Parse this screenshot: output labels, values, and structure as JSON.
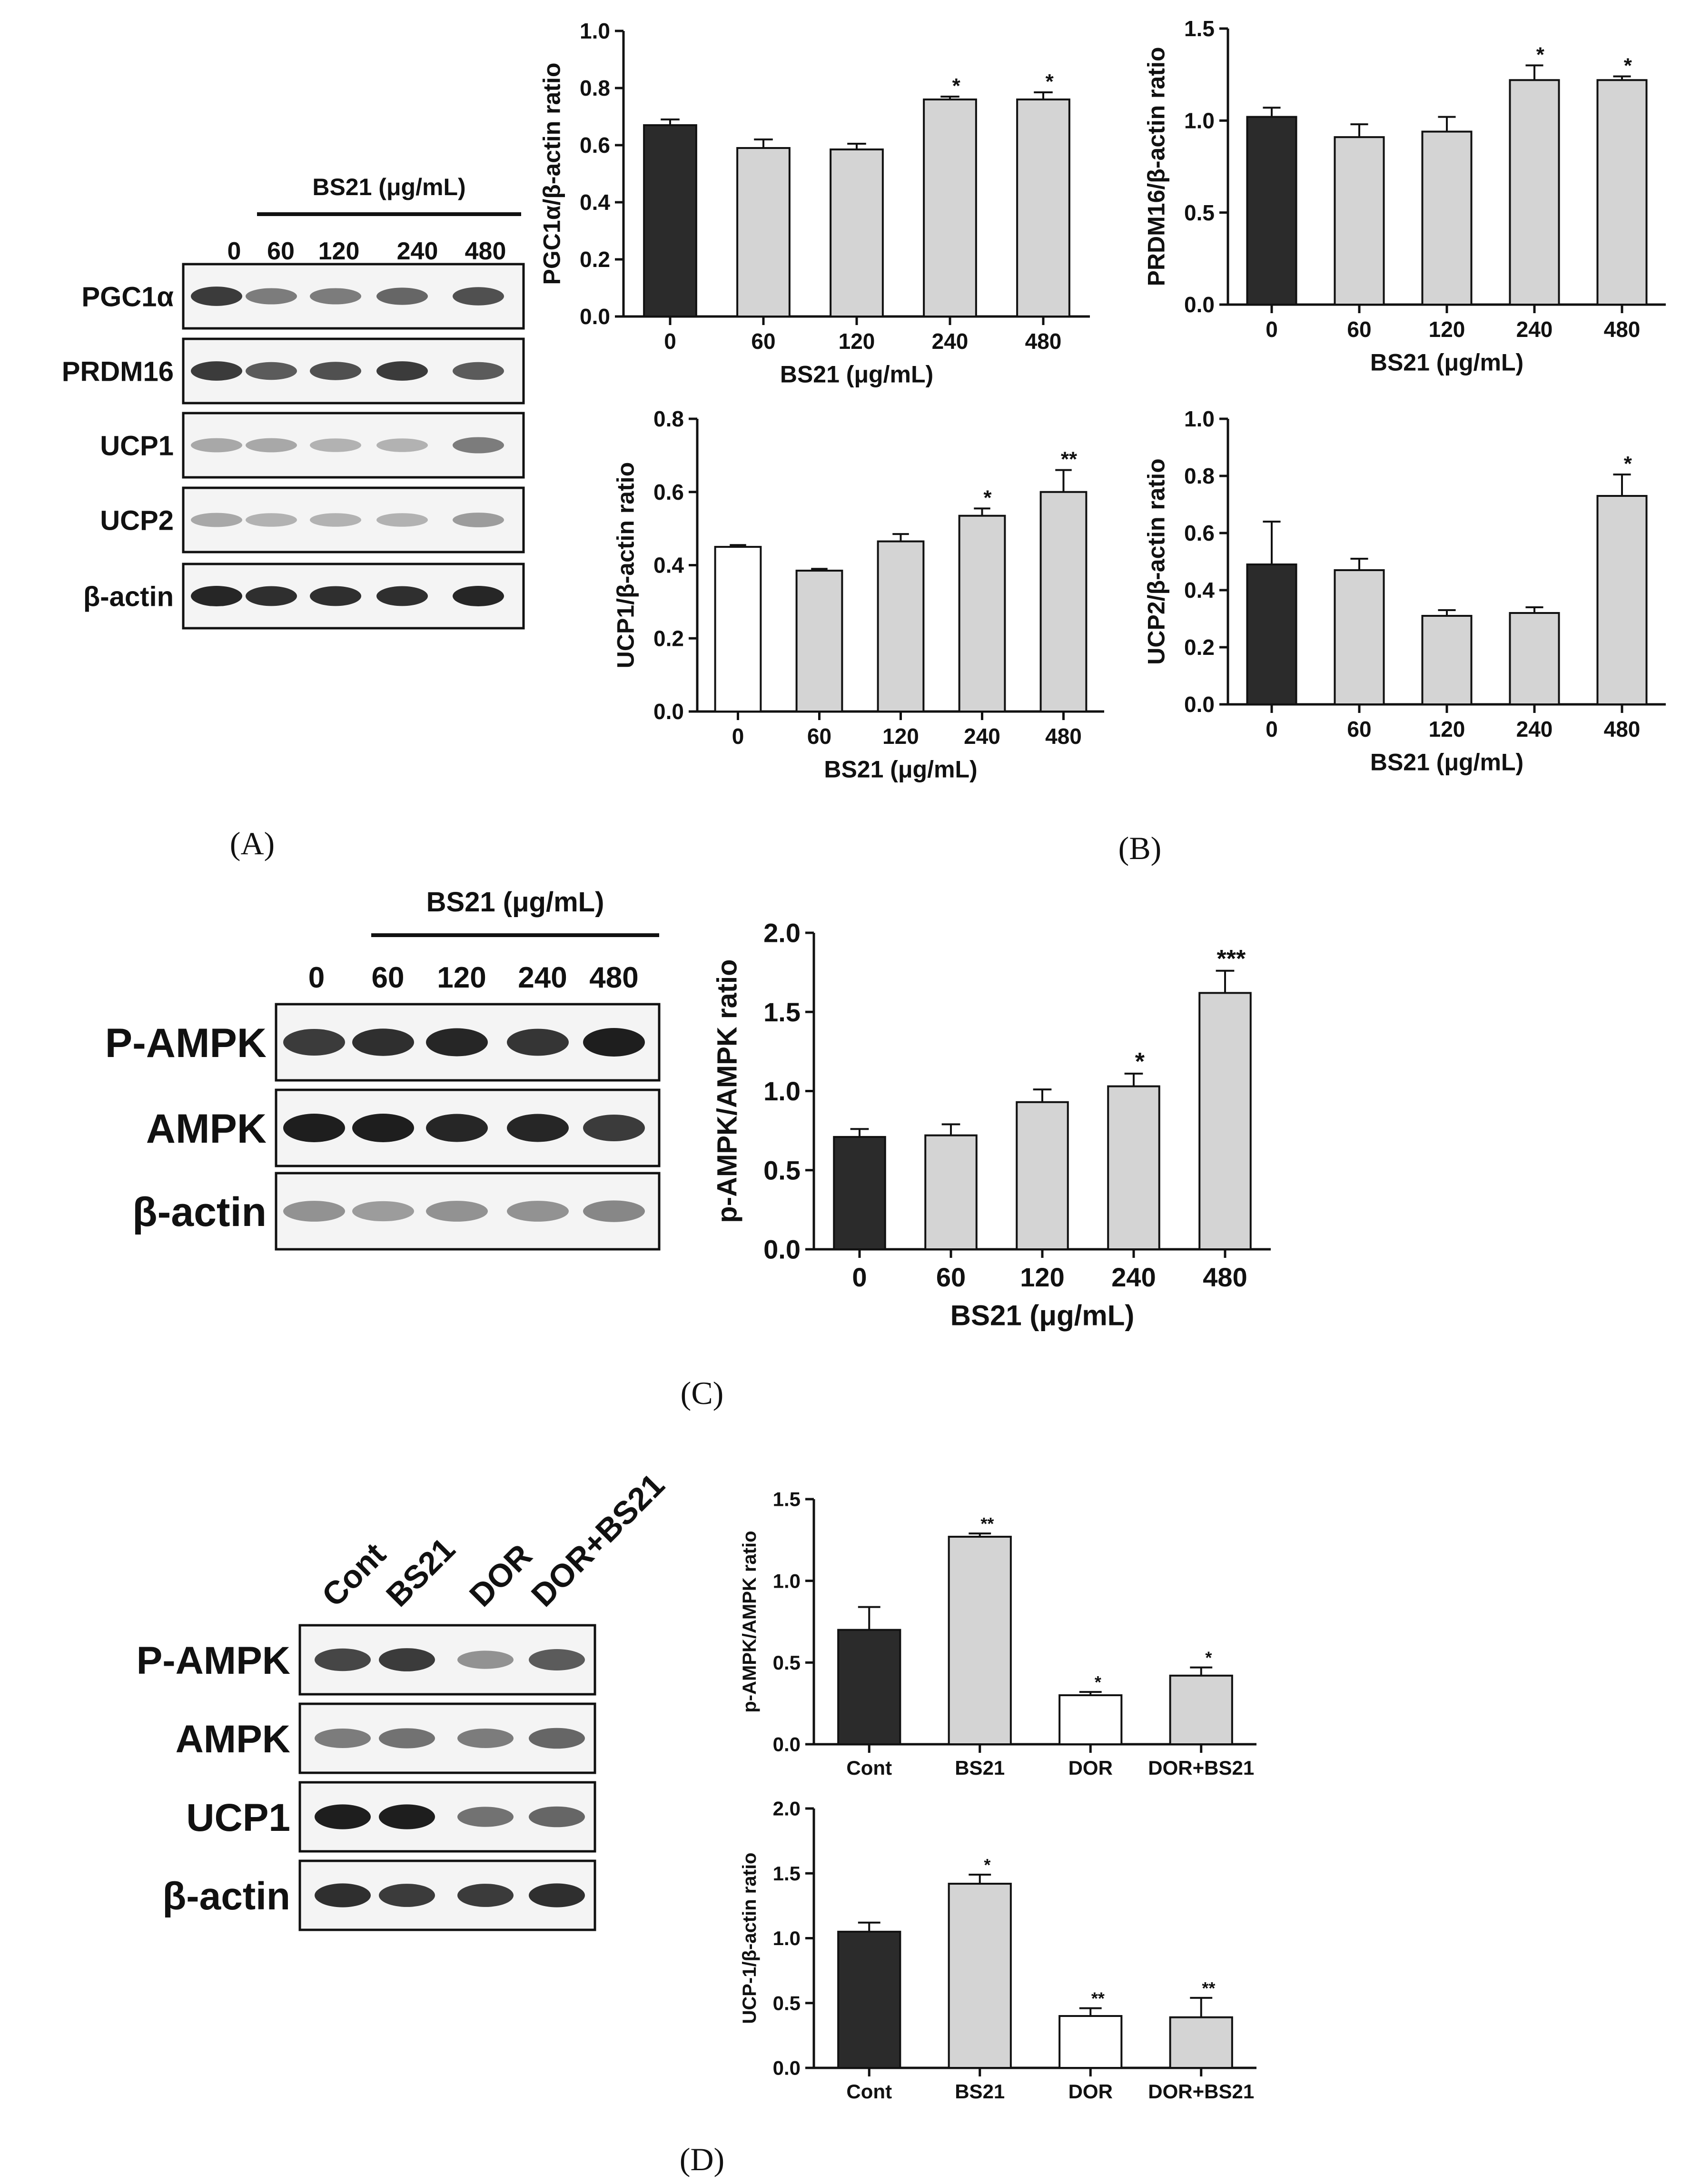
{
  "panel_labels": [
    "(A)",
    "(B)",
    "(C)",
    "(D)"
  ],
  "blots": {
    "a": {
      "group_label": "BS21 (μg/mL)",
      "lanes": [
        "0",
        "60",
        "120",
        "240",
        "480"
      ],
      "rows": [
        "PGC1α",
        "PRDM16",
        "UCP1",
        "UCP2",
        "β-actin"
      ]
    },
    "c": {
      "group_label": "BS21 (μg/mL)",
      "lanes": [
        "0",
        "60",
        "120",
        "240",
        "480"
      ],
      "rows": [
        "P-AMPK",
        "AMPK",
        "β-actin"
      ]
    },
    "d": {
      "lanes": [
        "Cont",
        "BS21",
        "DOR",
        "DOR+BS21"
      ],
      "rows": [
        "P-AMPK",
        "AMPK",
        "UCP1",
        "β-actin"
      ]
    }
  },
  "colors": {
    "dark_bar": "#2b2b2b",
    "gray_bar": "#d4d4d4",
    "white_bar": "#ffffff"
  },
  "chart_data": [
    {
      "id": "b1",
      "type": "bar",
      "categories": [
        "0",
        "60",
        "120",
        "240",
        "480"
      ],
      "values": [
        0.67,
        0.59,
        0.585,
        0.76,
        0.76
      ],
      "errors": [
        0.02,
        0.03,
        0.02,
        0.01,
        0.025
      ],
      "stars": [
        "",
        "",
        "",
        "*",
        "*"
      ],
      "bar_styles": [
        "dark",
        "gray",
        "gray",
        "gray",
        "gray"
      ],
      "ylim": [
        0,
        1.0
      ],
      "yticks": [
        "0.0",
        "0.2",
        "0.4",
        "0.6",
        "0.8",
        "1.0"
      ],
      "xlabel": "BS21 (μg/mL)",
      "ylabel": "PGC1α/β-actin ratio"
    },
    {
      "id": "b2",
      "type": "bar",
      "categories": [
        "0",
        "60",
        "120",
        "240",
        "480"
      ],
      "values": [
        1.02,
        0.91,
        0.94,
        1.22,
        1.22
      ],
      "errors": [
        0.05,
        0.07,
        0.08,
        0.08,
        0.02
      ],
      "stars": [
        "",
        "",
        "",
        "*",
        "*"
      ],
      "bar_styles": [
        "dark",
        "gray",
        "gray",
        "gray",
        "gray"
      ],
      "ylim": [
        0,
        1.5
      ],
      "yticks": [
        "0.0",
        "0.5",
        "1.0",
        "1.5"
      ],
      "xlabel": "BS21 (μg/mL)",
      "ylabel": "PRDM16/β-actin ratio"
    },
    {
      "id": "b3",
      "type": "bar",
      "categories": [
        "0",
        "60",
        "120",
        "240",
        "480"
      ],
      "values": [
        0.45,
        0.385,
        0.465,
        0.535,
        0.6
      ],
      "errors": [
        0.005,
        0.005,
        0.02,
        0.02,
        0.06
      ],
      "stars": [
        "",
        "",
        "",
        "*",
        "**"
      ],
      "bar_styles": [
        "white",
        "gray",
        "gray",
        "gray",
        "gray"
      ],
      "ylim": [
        0,
        0.8
      ],
      "yticks": [
        "0.0",
        "0.2",
        "0.4",
        "0.6",
        "0.8"
      ],
      "xlabel": "BS21 (μg/mL)",
      "ylabel": "UCP1/β-actin ratio"
    },
    {
      "id": "b4",
      "type": "bar",
      "categories": [
        "0",
        "60",
        "120",
        "240",
        "480"
      ],
      "values": [
        0.49,
        0.47,
        0.31,
        0.32,
        0.73
      ],
      "errors": [
        0.15,
        0.04,
        0.02,
        0.02,
        0.075
      ],
      "stars": [
        "",
        "",
        "",
        "",
        "*"
      ],
      "bar_styles": [
        "dark",
        "gray",
        "gray",
        "gray",
        "gray"
      ],
      "ylim": [
        0,
        1.0
      ],
      "yticks": [
        "0.0",
        "0.2",
        "0.4",
        "0.6",
        "0.8",
        "1.0"
      ],
      "xlabel": "BS21 (μg/mL)",
      "ylabel": "UCP2/β-actin ratio"
    },
    {
      "id": "c",
      "type": "bar",
      "categories": [
        "0",
        "60",
        "120",
        "240",
        "480"
      ],
      "values": [
        0.71,
        0.72,
        0.93,
        1.03,
        1.62
      ],
      "errors": [
        0.05,
        0.07,
        0.08,
        0.08,
        0.14
      ],
      "stars": [
        "",
        "",
        "",
        "*",
        "***"
      ],
      "bar_styles": [
        "dark",
        "gray",
        "gray",
        "gray",
        "gray"
      ],
      "ylim": [
        0,
        2.0
      ],
      "yticks": [
        "0.0",
        "0.5",
        "1.0",
        "1.5",
        "2.0"
      ],
      "xlabel": "BS21 (μg/mL)",
      "ylabel": "p-AMPK/AMPK ratio"
    },
    {
      "id": "d1",
      "type": "bar",
      "categories": [
        "Cont",
        "BS21",
        "DOR",
        "DOR+BS21"
      ],
      "values": [
        0.7,
        1.27,
        0.3,
        0.42
      ],
      "errors": [
        0.14,
        0.02,
        0.02,
        0.05
      ],
      "stars": [
        "",
        "**",
        "*",
        "*"
      ],
      "bar_styles": [
        "dark",
        "gray",
        "white",
        "gray"
      ],
      "ylim": [
        0,
        1.5
      ],
      "yticks": [
        "0.0",
        "0.5",
        "1.0",
        "1.5"
      ],
      "xlabel": "",
      "ylabel": "p-AMPK/AMPK ratio"
    },
    {
      "id": "d2",
      "type": "bar",
      "categories": [
        "Cont",
        "BS21",
        "DOR",
        "DOR+BS21"
      ],
      "values": [
        1.05,
        1.42,
        0.4,
        0.39
      ],
      "errors": [
        0.07,
        0.07,
        0.06,
        0.15
      ],
      "stars": [
        "",
        "*",
        "**",
        "**"
      ],
      "bar_styles": [
        "dark",
        "gray",
        "white",
        "gray"
      ],
      "ylim": [
        0,
        2.0
      ],
      "yticks": [
        "0.0",
        "0.5",
        "1.0",
        "1.5",
        "2.0"
      ],
      "xlabel": "",
      "ylabel": "UCP-1/β-actin ratio"
    }
  ]
}
